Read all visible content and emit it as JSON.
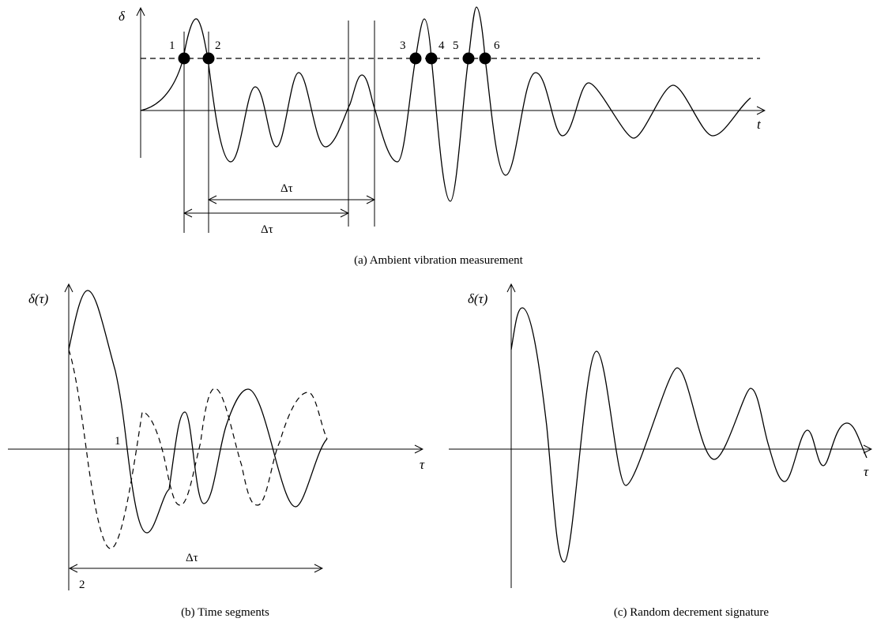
{
  "panel_a": {
    "y_label": "δ",
    "x_label": "t",
    "point_labels": [
      "1",
      "2",
      "3",
      "4",
      "5",
      "6"
    ],
    "interval_label_upper": "Δτ",
    "interval_label_lower": "Δτ",
    "caption": "(a)  Ambient vibration measurement"
  },
  "panel_b": {
    "y_label": "δ(τ)",
    "x_label": "τ",
    "segment_label_1": "1",
    "segment_label_2": "2",
    "interval_label": "Δτ",
    "caption": "(b)  Time segments"
  },
  "panel_c": {
    "y_label": "δ(τ)",
    "x_label": "τ",
    "caption": "(c)  Random decrement signature"
  }
}
